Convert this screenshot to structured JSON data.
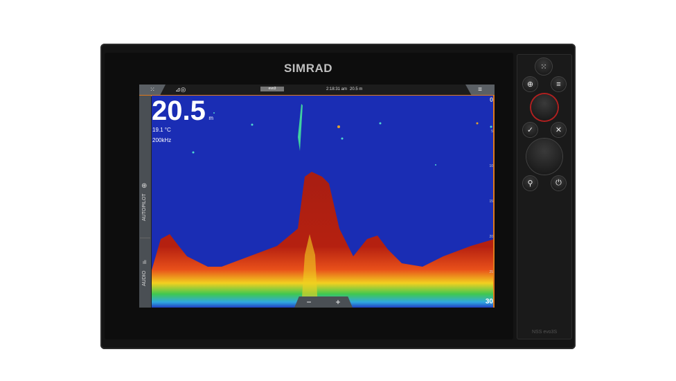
{
  "device": {
    "brand": "SIMRAD",
    "model": "NSS evo3S"
  },
  "topbar": {
    "time": "2:18:31 am",
    "depth": "20.5 m",
    "status_icons": [
      "signal-icon",
      "sonar-ping-icon"
    ],
    "center_chip": "evo3"
  },
  "readout": {
    "depth_value": "20.5",
    "depth_unit": "m",
    "temperature": "19.1 °C",
    "frequency": "200kHz"
  },
  "sidebar": {
    "items": [
      {
        "label": "AUTOPILOT",
        "icon": "steering-wheel-icon"
      },
      {
        "label": "AUDIO",
        "icon": "volume-bars-icon"
      }
    ]
  },
  "depth_scale": [
    "0",
    "5",
    "10",
    "15",
    "20",
    "25",
    "30"
  ],
  "zoom": {
    "minus": "−",
    "plus": "+"
  },
  "colors": {
    "water": "#1a2db4",
    "bottom": "#a81e12",
    "accent": "#e07a1c"
  },
  "controls": {
    "home": "apps-grid-icon",
    "menu": "menu-icon",
    "check": "✓",
    "close": "✕",
    "waypoint": "waypoint-icon",
    "power": "power-icon"
  }
}
